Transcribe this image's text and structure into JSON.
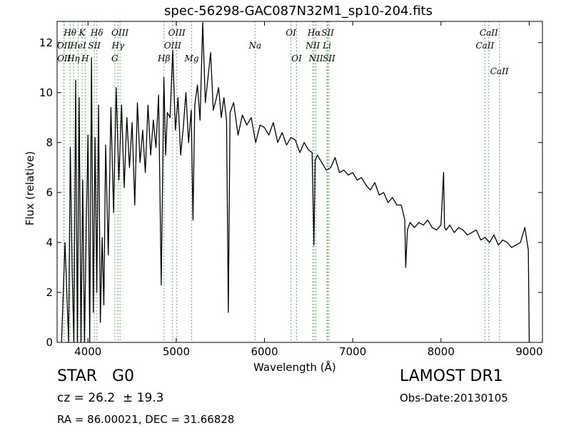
{
  "chart_data": {
    "type": "line",
    "title": "spec-56298-GAC087N32M1_sp10-204.fits",
    "xlabel": "Wavelength (Å)",
    "ylabel": "Flux (relative)",
    "xlim": [
      3650,
      9150
    ],
    "ylim": [
      0,
      12.85
    ],
    "xticks": [
      4000,
      5000,
      6000,
      7000,
      8000,
      9000
    ],
    "yticks": [
      0,
      2,
      4,
      6,
      8,
      10,
      12
    ],
    "grid": false,
    "line_color": "#000000",
    "marker_color": "#2ca02c",
    "series": [
      {
        "x": [
          3700,
          3740,
          3780,
          3800,
          3820,
          3840,
          3860,
          3880,
          3900,
          3920,
          3940,
          3960,
          3980,
          4000,
          4020,
          4040,
          4060,
          4080,
          4100,
          4120,
          4140,
          4160,
          4180,
          4200,
          4230,
          4260,
          4290,
          4320,
          4350,
          4380,
          4410,
          4440,
          4470,
          4500,
          4530,
          4560,
          4590,
          4620,
          4650,
          4680,
          4710,
          4740,
          4770,
          4800,
          4830,
          4860,
          4880,
          4900,
          4930,
          4960,
          4990,
          5020,
          5050,
          5080,
          5110,
          5140,
          5170,
          5190,
          5210,
          5240,
          5270,
          5300,
          5330,
          5360,
          5390,
          5420,
          5450,
          5480,
          5510,
          5540,
          5570,
          5590,
          5610,
          5650,
          5700,
          5750,
          5800,
          5850,
          5900,
          5950,
          6000,
          6050,
          6100,
          6150,
          6200,
          6250,
          6300,
          6350,
          6400,
          6450,
          6500,
          6540,
          6560,
          6575,
          6600,
          6650,
          6700,
          6750,
          6800,
          6850,
          6900,
          6950,
          7000,
          7050,
          7100,
          7150,
          7200,
          7250,
          7300,
          7350,
          7400,
          7450,
          7500,
          7550,
          7590,
          7600,
          7620,
          7650,
          7700,
          7750,
          7800,
          7850,
          7900,
          7950,
          8000,
          8030,
          8040,
          8060,
          8100,
          8150,
          8200,
          8250,
          8300,
          8350,
          8400,
          8450,
          8500,
          8550,
          8600,
          8650,
          8700,
          8750,
          8800,
          8850,
          8900,
          8950,
          8990,
          9000,
          9010
        ],
        "y": [
          0,
          4,
          0,
          7.8,
          3,
          0,
          10.5,
          0,
          9.8,
          0,
          6.5,
          0,
          4.5,
          8.3,
          0,
          11.4,
          1.2,
          8.2,
          2,
          9.5,
          0.8,
          4.2,
          1.5,
          7.9,
          3.5,
          9.4,
          5.2,
          10.2,
          6.5,
          9.5,
          6.2,
          9.0,
          7.0,
          8.8,
          5.5,
          9.6,
          7.2,
          8.5,
          6.8,
          9.5,
          7.5,
          8.9,
          7.8,
          9.9,
          2.3,
          10.6,
          7.5,
          9.2,
          9.0,
          11.7,
          8.5,
          9.8,
          7.5,
          8.6,
          10.0,
          8.0,
          9.3,
          4.9,
          9.5,
          10.3,
          8.9,
          12.8,
          9.6,
          10.6,
          11.6,
          9.3,
          9.7,
          10.2,
          9.0,
          9.8,
          8.9,
          1.2,
          9.2,
          9.6,
          8.3,
          9.1,
          8.7,
          9.0,
          8.0,
          8.7,
          8.6,
          8.3,
          8.8,
          8.0,
          8.4,
          7.9,
          8.2,
          8.1,
          7.6,
          8.0,
          7.7,
          7.6,
          3.9,
          7.3,
          7.5,
          7.2,
          6.9,
          7.0,
          7.4,
          6.8,
          6.9,
          6.7,
          6.8,
          6.5,
          6.6,
          6.3,
          6.1,
          6.4,
          5.9,
          6.0,
          5.6,
          5.8,
          5.5,
          5.5,
          4.9,
          3.0,
          4.5,
          4.8,
          4.6,
          4.8,
          4.7,
          4.9,
          4.6,
          4.5,
          4.7,
          6.8,
          4.6,
          4.5,
          4.7,
          4.4,
          4.6,
          4.5,
          4.3,
          4.4,
          4.5,
          4.1,
          4.2,
          4.0,
          4.3,
          3.9,
          4.1,
          4.0,
          3.8,
          3.9,
          4.0,
          4.6,
          3.7,
          0,
          0
        ]
      }
    ],
    "lines": [
      {
        "label": "Hθ",
        "wavelength": 3797
      },
      {
        "label": "K",
        "wavelength": 3933
      },
      {
        "label": "Hδ",
        "wavelength": 4101
      },
      {
        "label": "OIII",
        "wavelength": 4363
      },
      {
        "label": "OIII",
        "wavelength": 5007
      },
      {
        "label": "OI",
        "wavelength": 6300
      },
      {
        "label": "Hα",
        "wavelength": 6563
      },
      {
        "label": "SII",
        "wavelength": 6716
      },
      {
        "label": "CaII",
        "wavelength": 8542
      },
      {
        "label": "OII",
        "wavelength": 3727
      },
      {
        "label": "HeI",
        "wavelength": 3889
      },
      {
        "label": "SII",
        "wavelength": 4072
      },
      {
        "label": "Hγ",
        "wavelength": 4340
      },
      {
        "label": "OIII",
        "wavelength": 4959
      },
      {
        "label": "Na",
        "wavelength": 5893
      },
      {
        "label": "NII",
        "wavelength": 6548
      },
      {
        "label": "Li",
        "wavelength": 6708
      },
      {
        "label": "CaII",
        "wavelength": 8498
      },
      {
        "label": "OII",
        "wavelength": 3729
      },
      {
        "label": "Hη",
        "wavelength": 3835
      },
      {
        "label": "H",
        "wavelength": 3968
      },
      {
        "label": "G",
        "wavelength": 4304
      },
      {
        "label": "Hβ",
        "wavelength": 4861
      },
      {
        "label": "Mg",
        "wavelength": 5175
      },
      {
        "label": "OI",
        "wavelength": 6364
      },
      {
        "label": "NII",
        "wavelength": 6583
      },
      {
        "label": "SII",
        "wavelength": 6731
      },
      {
        "label": "CaII",
        "wavelength": 8662
      }
    ]
  },
  "info": {
    "object_class": "STAR",
    "subclass": "G0",
    "redshift_text": "cz = 26.2  ± 19.3",
    "coords_text": "RA = 86.00021, DEC = 31.66828",
    "survey": "LAMOST DR1",
    "obs_date": "Obs-Date:20130105"
  }
}
